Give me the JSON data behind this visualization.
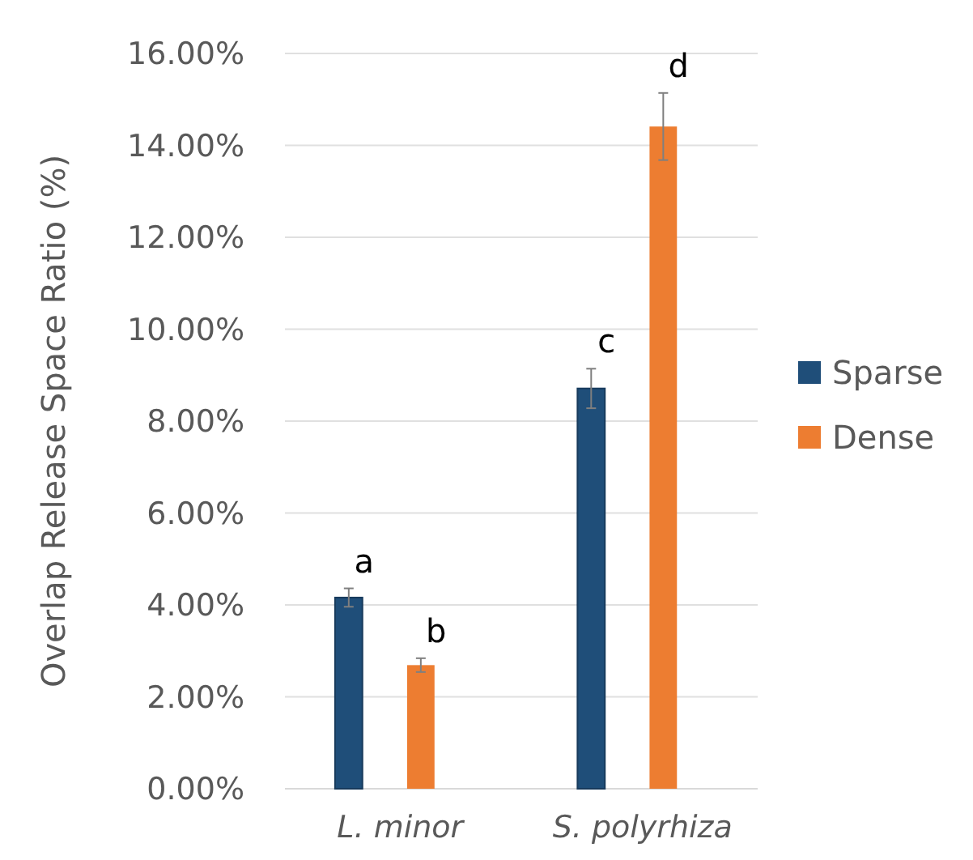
{
  "chart_data": {
    "type": "bar",
    "ylabel": "Overlap Release Space Ratio (%)",
    "categories": [
      "L. minor",
      "S. polyrhiza"
    ],
    "series": [
      {
        "name": "Sparse",
        "color": "#1f4e79",
        "values": [
          4.16,
          8.71
        ],
        "errors": [
          0.2,
          0.43
        ]
      },
      {
        "name": "Dense",
        "color": "#ed7d31",
        "values": [
          2.69,
          14.41
        ],
        "errors": [
          0.15,
          0.73
        ]
      }
    ],
    "ylim": [
      0,
      16
    ],
    "yticks": [
      {
        "value": 0,
        "label": "0.00%"
      },
      {
        "value": 2,
        "label": "2.00%"
      },
      {
        "value": 4,
        "label": "4.00%"
      },
      {
        "value": 6,
        "label": "6.00%"
      },
      {
        "value": 8,
        "label": "8.00%"
      },
      {
        "value": 10,
        "label": "10.00%"
      },
      {
        "value": 12,
        "label": "12.00%"
      },
      {
        "value": 14,
        "label": "14.00%"
      },
      {
        "value": 16,
        "label": "16.00%"
      }
    ],
    "annotations": [
      "a",
      "b",
      "c",
      "d"
    ],
    "grid": "y",
    "legend": "right"
  }
}
